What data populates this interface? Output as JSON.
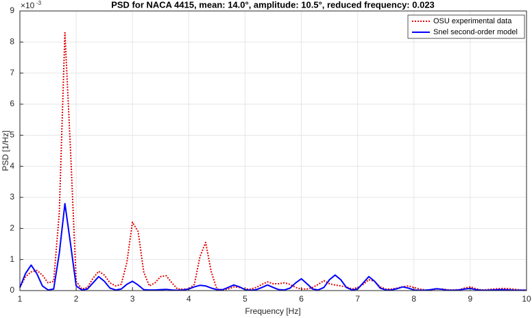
{
  "chart_data": {
    "type": "line",
    "title": "PSD for NACA 4415, mean: 14.0°, amplitude: 10.5°, reduced  frequency: 0.023",
    "x_label": "Frequency [Hz]",
    "y_label": "PSD [1/Hz]",
    "y_multiplier": {
      "base": "×10",
      "exponent": "-3"
    },
    "x": [
      1,
      1.1,
      1.2,
      1.3,
      1.4,
      1.5,
      1.6,
      1.7,
      1.8,
      1.9,
      2,
      2.1,
      2.2,
      2.3,
      2.4,
      2.5,
      2.6,
      2.7,
      2.8,
      2.9,
      3,
      3.1,
      3.2,
      3.3,
      3.4,
      3.5,
      3.6,
      3.7,
      3.8,
      3.9,
      4,
      4.1,
      4.2,
      4.3,
      4.4,
      4.5,
      4.6,
      4.7,
      4.8,
      4.9,
      5,
      5.1,
      5.2,
      5.3,
      5.4,
      5.5,
      5.6,
      5.7,
      5.8,
      5.9,
      6,
      6.1,
      6.2,
      6.3,
      6.4,
      6.5,
      6.6,
      6.7,
      6.8,
      6.9,
      7,
      7.1,
      7.2,
      7.3,
      7.4,
      7.5,
      7.6,
      7.7,
      7.8,
      7.9,
      8,
      8.1,
      8.2,
      8.3,
      8.4,
      8.5,
      8.6,
      8.7,
      8.8,
      8.9,
      9,
      9.1,
      9.2,
      9.3,
      9.4,
      9.5,
      9.6,
      9.7,
      9.8,
      9.9,
      10
    ],
    "series": [
      {
        "name": "OSU experimental data",
        "color": "#e00000",
        "dash": "dotted",
        "values": [
          0.1,
          0.45,
          0.6,
          0.65,
          0.5,
          0.25,
          0.3,
          2.5,
          8.3,
          4.5,
          0.3,
          0.05,
          0.1,
          0.4,
          0.62,
          0.5,
          0.25,
          0.15,
          0.2,
          0.9,
          2.2,
          1.9,
          0.6,
          0.15,
          0.25,
          0.45,
          0.48,
          0.25,
          0.05,
          0.05,
          0.05,
          0.2,
          1.1,
          1.55,
          0.6,
          0.05,
          0.02,
          0.05,
          0.12,
          0.1,
          0.05,
          0.05,
          0.1,
          0.2,
          0.28,
          0.22,
          0.22,
          0.25,
          0.2,
          0.1,
          0.05,
          0.05,
          0.1,
          0.2,
          0.32,
          0.22,
          0.18,
          0.15,
          0.12,
          0.05,
          0.1,
          0.2,
          0.35,
          0.3,
          0.12,
          0.05,
          0.05,
          0.08,
          0.12,
          0.15,
          0.1,
          0.05,
          0.02,
          0.02,
          0.05,
          0.05,
          0.03,
          0.02,
          0.03,
          0.08,
          0.12,
          0.06,
          0.02,
          0.03,
          0.05,
          0.06,
          0.07,
          0.06,
          0.04,
          0.02,
          0.02
        ]
      },
      {
        "name": "Snel second-order model",
        "color": "#0000ff",
        "dash": "solid",
        "values": [
          0.1,
          0.55,
          0.82,
          0.55,
          0.15,
          0.02,
          0.05,
          1.2,
          2.8,
          1.5,
          0.15,
          0.02,
          0.05,
          0.25,
          0.45,
          0.3,
          0.08,
          0.02,
          0.05,
          0.2,
          0.3,
          0.18,
          0.03,
          0.02,
          0.02,
          0.03,
          0.04,
          0.02,
          0.01,
          0.02,
          0.05,
          0.12,
          0.17,
          0.15,
          0.08,
          0.03,
          0.03,
          0.1,
          0.18,
          0.12,
          0.03,
          0.01,
          0.03,
          0.1,
          0.18,
          0.1,
          0.03,
          0.02,
          0.08,
          0.25,
          0.38,
          0.22,
          0.05,
          0.02,
          0.1,
          0.35,
          0.5,
          0.35,
          0.1,
          0.02,
          0.05,
          0.25,
          0.45,
          0.3,
          0.08,
          0.02,
          0.02,
          0.06,
          0.12,
          0.08,
          0.02,
          0.01,
          0.01,
          0.03,
          0.06,
          0.04,
          0.01,
          0.01,
          0.02,
          0.05,
          0.07,
          0.03,
          0.01,
          0.01,
          0.02,
          0.03,
          0.03,
          0.02,
          0.01,
          0.01,
          0.01
        ]
      }
    ],
    "xlim": [
      1,
      10
    ],
    "xticks": [
      1,
      2,
      3,
      4,
      5,
      6,
      7,
      8,
      9,
      10
    ],
    "ylim": [
      0,
      9
    ],
    "yticks": [
      0,
      1,
      2,
      3,
      4,
      5,
      6,
      7,
      8,
      9
    ],
    "grid": true,
    "legend": "top-right"
  }
}
